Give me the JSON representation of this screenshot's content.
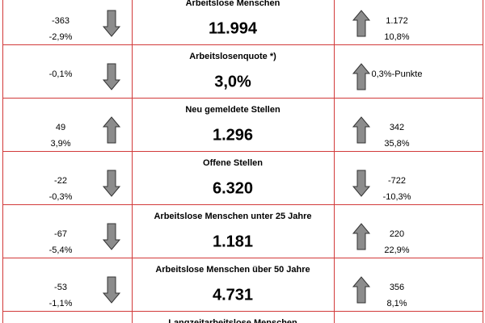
{
  "rows": [
    {
      "left": {
        "lines": [
          "-363",
          "-2,9%"
        ],
        "arrow": "down"
      },
      "title": "Arbeitslose Menschen",
      "value": "11.994",
      "right": {
        "lines": [
          "1.172",
          "10,8%"
        ],
        "arrow": "up"
      }
    },
    {
      "left": {
        "lines": [
          "-0,1%"
        ],
        "arrow": "down"
      },
      "title": "Arbeitslosenquote *)",
      "value": "3,0%",
      "right": {
        "lines": [
          "0,3%-Punkte"
        ],
        "arrow": "up"
      }
    },
    {
      "left": {
        "lines": [
          "49",
          "3,9%"
        ],
        "arrow": "up"
      },
      "title": "Neu gemeldete Stellen",
      "value": "1.296",
      "right": {
        "lines": [
          "342",
          "35,8%"
        ],
        "arrow": "up"
      }
    },
    {
      "left": {
        "lines": [
          "-22",
          "-0,3%"
        ],
        "arrow": "down"
      },
      "title": "Offene Stellen",
      "value": "6.320",
      "right": {
        "lines": [
          "-722",
          "-10,3%"
        ],
        "arrow": "down"
      }
    },
    {
      "left": {
        "lines": [
          "-67",
          "-5,4%"
        ],
        "arrow": "down"
      },
      "title": "Arbeitslose Menschen unter 25 Jahre",
      "value": "1.181",
      "right": {
        "lines": [
          "220",
          "22,9%"
        ],
        "arrow": "up"
      }
    },
    {
      "left": {
        "lines": [
          "-53",
          "-1,1%"
        ],
        "arrow": "down"
      },
      "title": "Arbeitslose Menschen über 50 Jahre",
      "value": "4.731",
      "right": {
        "lines": [
          "356",
          "8,1%"
        ],
        "arrow": "up"
      }
    },
    {
      "title": "Langzeitarbeitslose Menschen"
    }
  ]
}
